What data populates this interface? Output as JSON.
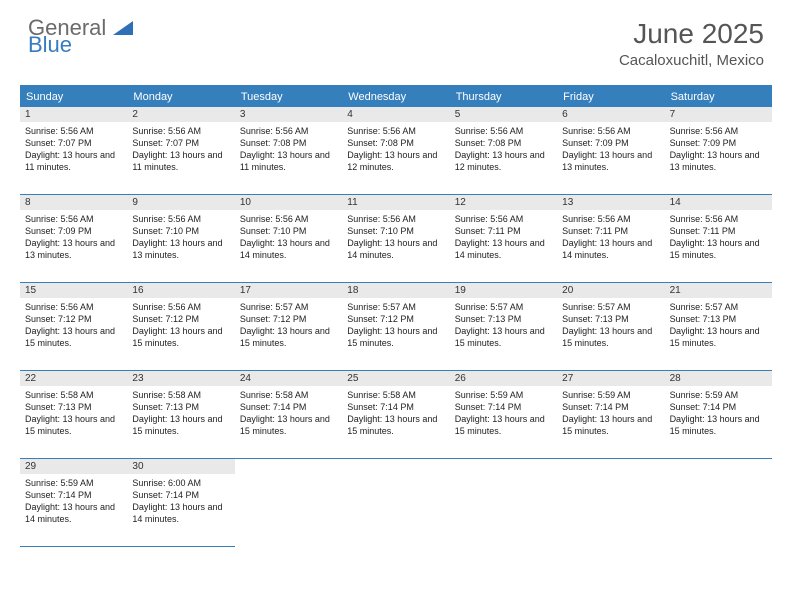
{
  "brand": {
    "text_general": "General",
    "text_blue": "Blue",
    "icon_color": "#2e6fb5"
  },
  "title": {
    "month_year": "June 2025",
    "location": "Cacaloxuchitl, Mexico"
  },
  "colors": {
    "header_bg": "#357fbc",
    "header_text": "#ffffff",
    "daynum_bg": "#e9e9e9",
    "border": "#357fbc",
    "body_text": "#222222"
  },
  "weekday_headers": [
    "Sunday",
    "Monday",
    "Tuesday",
    "Wednesday",
    "Thursday",
    "Friday",
    "Saturday"
  ],
  "days": [
    {
      "n": "1",
      "sunrise": "5:56 AM",
      "sunset": "7:07 PM",
      "daylight": "13 hours and 11 minutes."
    },
    {
      "n": "2",
      "sunrise": "5:56 AM",
      "sunset": "7:07 PM",
      "daylight": "13 hours and 11 minutes."
    },
    {
      "n": "3",
      "sunrise": "5:56 AM",
      "sunset": "7:08 PM",
      "daylight": "13 hours and 11 minutes."
    },
    {
      "n": "4",
      "sunrise": "5:56 AM",
      "sunset": "7:08 PM",
      "daylight": "13 hours and 12 minutes."
    },
    {
      "n": "5",
      "sunrise": "5:56 AM",
      "sunset": "7:08 PM",
      "daylight": "13 hours and 12 minutes."
    },
    {
      "n": "6",
      "sunrise": "5:56 AM",
      "sunset": "7:09 PM",
      "daylight": "13 hours and 13 minutes."
    },
    {
      "n": "7",
      "sunrise": "5:56 AM",
      "sunset": "7:09 PM",
      "daylight": "13 hours and 13 minutes."
    },
    {
      "n": "8",
      "sunrise": "5:56 AM",
      "sunset": "7:09 PM",
      "daylight": "13 hours and 13 minutes."
    },
    {
      "n": "9",
      "sunrise": "5:56 AM",
      "sunset": "7:10 PM",
      "daylight": "13 hours and 13 minutes."
    },
    {
      "n": "10",
      "sunrise": "5:56 AM",
      "sunset": "7:10 PM",
      "daylight": "13 hours and 14 minutes."
    },
    {
      "n": "11",
      "sunrise": "5:56 AM",
      "sunset": "7:10 PM",
      "daylight": "13 hours and 14 minutes."
    },
    {
      "n": "12",
      "sunrise": "5:56 AM",
      "sunset": "7:11 PM",
      "daylight": "13 hours and 14 minutes."
    },
    {
      "n": "13",
      "sunrise": "5:56 AM",
      "sunset": "7:11 PM",
      "daylight": "13 hours and 14 minutes."
    },
    {
      "n": "14",
      "sunrise": "5:56 AM",
      "sunset": "7:11 PM",
      "daylight": "13 hours and 15 minutes."
    },
    {
      "n": "15",
      "sunrise": "5:56 AM",
      "sunset": "7:12 PM",
      "daylight": "13 hours and 15 minutes."
    },
    {
      "n": "16",
      "sunrise": "5:56 AM",
      "sunset": "7:12 PM",
      "daylight": "13 hours and 15 minutes."
    },
    {
      "n": "17",
      "sunrise": "5:57 AM",
      "sunset": "7:12 PM",
      "daylight": "13 hours and 15 minutes."
    },
    {
      "n": "18",
      "sunrise": "5:57 AM",
      "sunset": "7:12 PM",
      "daylight": "13 hours and 15 minutes."
    },
    {
      "n": "19",
      "sunrise": "5:57 AM",
      "sunset": "7:13 PM",
      "daylight": "13 hours and 15 minutes."
    },
    {
      "n": "20",
      "sunrise": "5:57 AM",
      "sunset": "7:13 PM",
      "daylight": "13 hours and 15 minutes."
    },
    {
      "n": "21",
      "sunrise": "5:57 AM",
      "sunset": "7:13 PM",
      "daylight": "13 hours and 15 minutes."
    },
    {
      "n": "22",
      "sunrise": "5:58 AM",
      "sunset": "7:13 PM",
      "daylight": "13 hours and 15 minutes."
    },
    {
      "n": "23",
      "sunrise": "5:58 AM",
      "sunset": "7:13 PM",
      "daylight": "13 hours and 15 minutes."
    },
    {
      "n": "24",
      "sunrise": "5:58 AM",
      "sunset": "7:14 PM",
      "daylight": "13 hours and 15 minutes."
    },
    {
      "n": "25",
      "sunrise": "5:58 AM",
      "sunset": "7:14 PM",
      "daylight": "13 hours and 15 minutes."
    },
    {
      "n": "26",
      "sunrise": "5:59 AM",
      "sunset": "7:14 PM",
      "daylight": "13 hours and 15 minutes."
    },
    {
      "n": "27",
      "sunrise": "5:59 AM",
      "sunset": "7:14 PM",
      "daylight": "13 hours and 15 minutes."
    },
    {
      "n": "28",
      "sunrise": "5:59 AM",
      "sunset": "7:14 PM",
      "daylight": "13 hours and 15 minutes."
    },
    {
      "n": "29",
      "sunrise": "5:59 AM",
      "sunset": "7:14 PM",
      "daylight": "13 hours and 14 minutes."
    },
    {
      "n": "30",
      "sunrise": "6:00 AM",
      "sunset": "7:14 PM",
      "daylight": "13 hours and 14 minutes."
    }
  ],
  "labels": {
    "sunrise_prefix": "Sunrise: ",
    "sunset_prefix": "Sunset: ",
    "daylight_prefix": "Daylight: "
  }
}
